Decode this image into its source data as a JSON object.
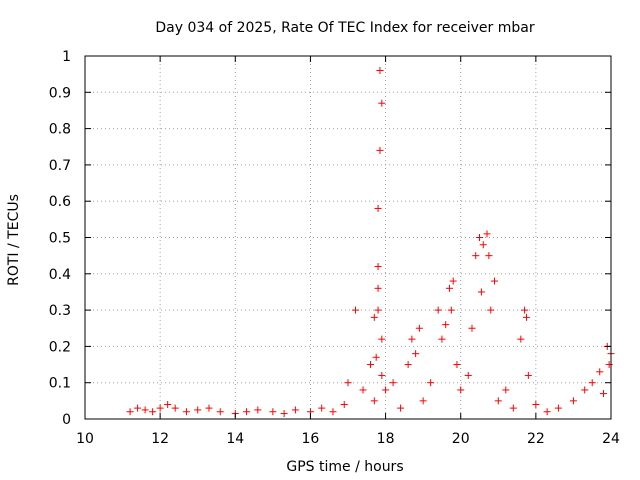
{
  "chart_data": {
    "type": "scatter",
    "title": "Day 034 of 2025, Rate Of TEC Index for receiver mbar",
    "xlabel": "GPS time / hours",
    "ylabel": "ROTI / TECUs",
    "xlim": [
      10,
      24
    ],
    "ylim": [
      0,
      1
    ],
    "x_ticks": [
      10,
      12,
      14,
      16,
      18,
      20,
      22,
      24
    ],
    "x_tick_labels": [
      "10",
      "12",
      "14",
      "16",
      "18",
      "20",
      "22",
      "24"
    ],
    "y_ticks": [
      0,
      0.1,
      0.2,
      0.3,
      0.4,
      0.5,
      0.6,
      0.7,
      0.8,
      0.9,
      1
    ],
    "y_tick_labels": [
      "0",
      "0.1",
      "0.2",
      "0.3",
      "0.4",
      "0.5",
      "0.6",
      "0.7",
      "0.8",
      "0.9",
      "1"
    ],
    "grid": true,
    "marker": "plus",
    "color": "#ff0000",
    "series": [
      {
        "name": "ROTI",
        "x": [
          11.2,
          11.4,
          11.6,
          11.8,
          12.0,
          12.2,
          12.4,
          12.7,
          13.0,
          13.3,
          13.6,
          14.0,
          14.3,
          14.6,
          15.0,
          15.3,
          15.6,
          16.0,
          16.3,
          16.6,
          16.9,
          17.0,
          17.2,
          17.4,
          17.6,
          17.7,
          17.8,
          17.8,
          17.85,
          17.9,
          17.85,
          17.8,
          17.9,
          17.75,
          17.8,
          17.7,
          17.9,
          18.0,
          18.2,
          18.4,
          18.6,
          18.7,
          18.8,
          18.9,
          19.0,
          19.2,
          19.4,
          19.5,
          19.6,
          19.7,
          19.75,
          19.8,
          19.9,
          20.0,
          20.2,
          20.3,
          20.4,
          20.5,
          20.55,
          20.6,
          20.7,
          20.75,
          20.8,
          20.9,
          21.0,
          21.2,
          21.4,
          21.6,
          21.7,
          21.75,
          21.8,
          22.0,
          22.3,
          22.6,
          23.0,
          23.3,
          23.5,
          23.7,
          23.8,
          23.9,
          23.95,
          24.0
        ],
        "y": [
          0.02,
          0.03,
          0.025,
          0.02,
          0.03,
          0.04,
          0.03,
          0.02,
          0.025,
          0.03,
          0.02,
          0.015,
          0.02,
          0.025,
          0.02,
          0.015,
          0.025,
          0.02,
          0.03,
          0.02,
          0.04,
          0.1,
          0.3,
          0.08,
          0.15,
          0.28,
          0.42,
          0.58,
          0.74,
          0.87,
          0.96,
          0.36,
          0.22,
          0.17,
          0.3,
          0.05,
          0.12,
          0.08,
          0.1,
          0.03,
          0.15,
          0.22,
          0.18,
          0.25,
          0.05,
          0.1,
          0.3,
          0.22,
          0.26,
          0.36,
          0.3,
          0.38,
          0.15,
          0.08,
          0.12,
          0.25,
          0.45,
          0.5,
          0.35,
          0.48,
          0.51,
          0.45,
          0.3,
          0.38,
          0.05,
          0.08,
          0.03,
          0.22,
          0.3,
          0.28,
          0.12,
          0.04,
          0.02,
          0.03,
          0.05,
          0.08,
          0.1,
          0.13,
          0.07,
          0.2,
          0.15,
          0.18
        ]
      }
    ]
  }
}
